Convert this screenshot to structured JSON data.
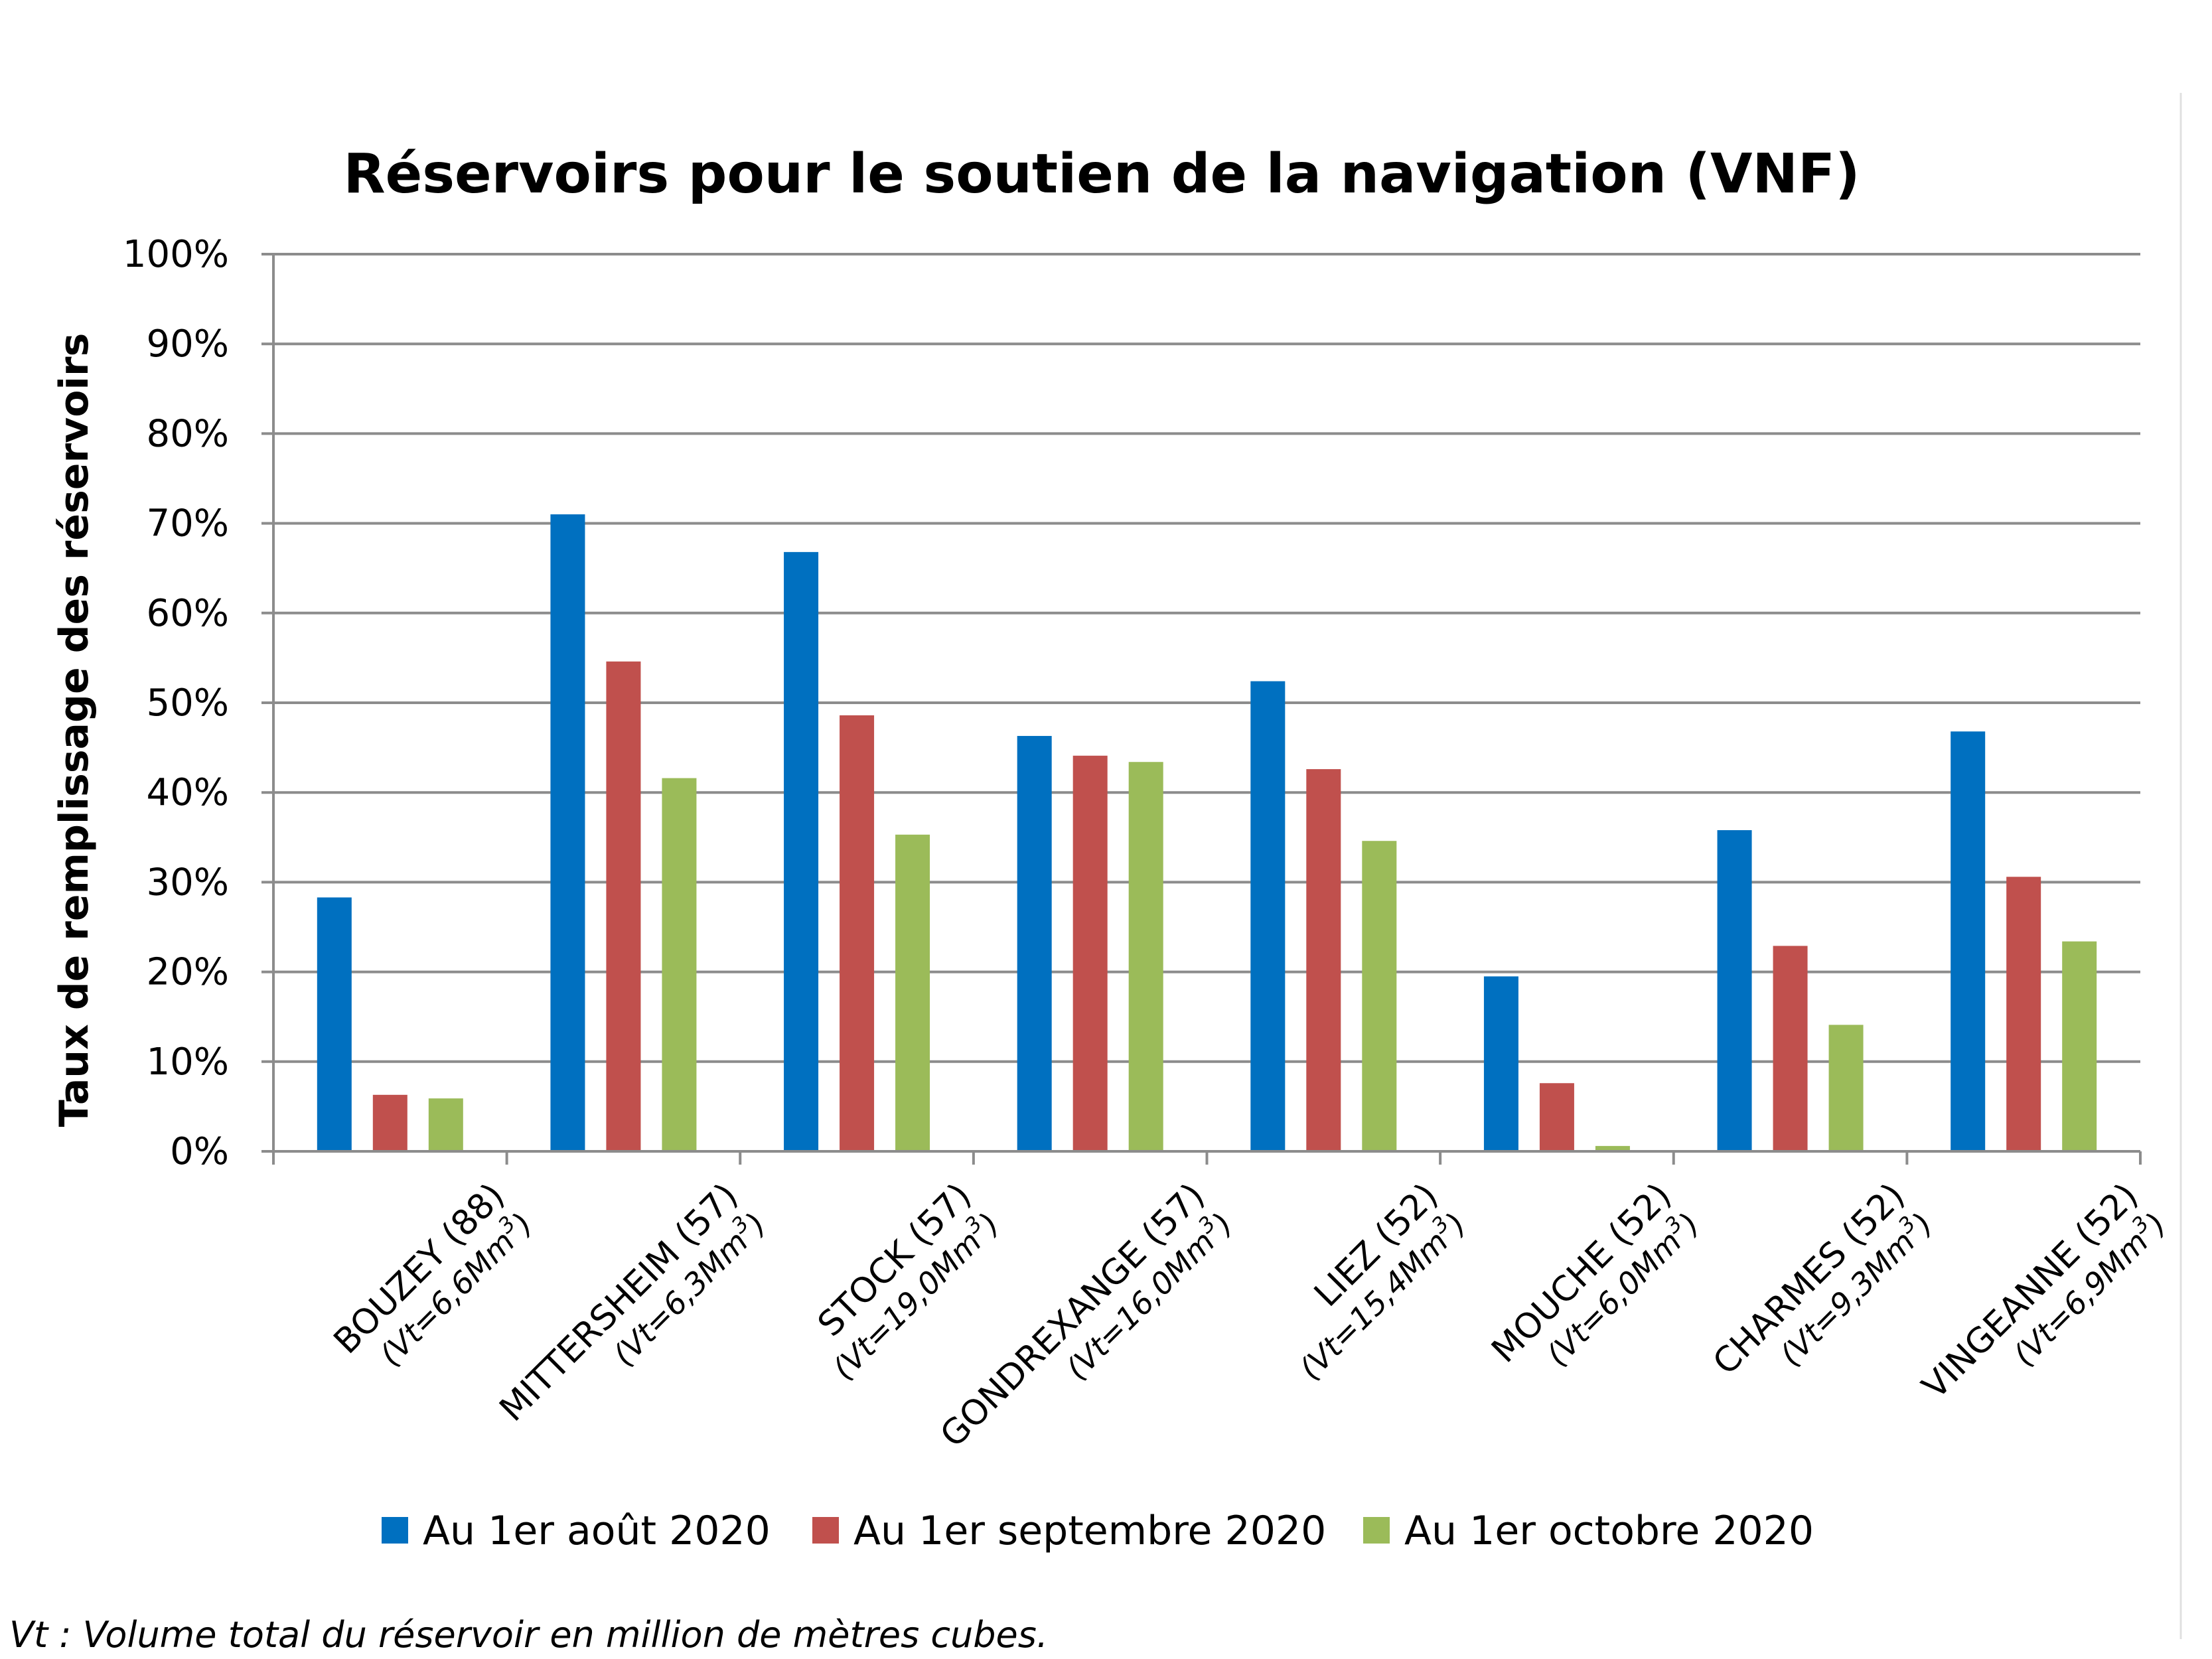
{
  "chart_data": {
    "type": "bar",
    "title": "Réservoirs pour le soutien de la navigation (VNF)",
    "ylabel": "Taux de remplissage des réservoirs",
    "xlabel": "",
    "ylim": [
      0,
      100
    ],
    "yticks": [
      "0%",
      "10%",
      "20%",
      "30%",
      "40%",
      "50%",
      "60%",
      "70%",
      "80%",
      "90%",
      "100%"
    ],
    "grid": true,
    "legend_position": "bottom",
    "categories": [
      {
        "name": "BOUZEY (88)",
        "sub": "Vt=6,6Mm",
        "sup": "3"
      },
      {
        "name": "MITTERSHEIM (57)",
        "sub": "Vt=6,3Mm",
        "sup": "3"
      },
      {
        "name": "STOCK (57)",
        "sub": "Vt=19,0Mm",
        "sup": "3"
      },
      {
        "name": "GONDREXANGE (57)",
        "sub": "Vt=16,0Mm",
        "sup": "3"
      },
      {
        "name": "LIEZ (52)",
        "sub": "Vt=15,4Mm",
        "sup": "3"
      },
      {
        "name": "MOUCHE (52)",
        "sub": "Vt=6,0Mm",
        "sup": "3"
      },
      {
        "name": "CHARMES (52)",
        "sub": "Vt=9,3Mm",
        "sup": "3"
      },
      {
        "name": "VINGEANNE (52)",
        "sub": "Vt=6,9Mm",
        "sup": "3"
      }
    ],
    "series": [
      {
        "name": "Au 1er août 2020",
        "color": "#0070C0",
        "values": [
          28.3,
          71.0,
          66.8,
          46.3,
          52.4,
          19.5,
          35.8,
          46.8
        ]
      },
      {
        "name": "Au 1er septembre 2020",
        "color": "#C0504D",
        "values": [
          6.3,
          54.6,
          48.6,
          44.1,
          42.6,
          7.6,
          22.9,
          30.6
        ]
      },
      {
        "name": "Au 1er octobre 2020",
        "color": "#9BBB59",
        "values": [
          5.9,
          41.6,
          35.3,
          43.4,
          34.6,
          0.6,
          14.1,
          23.4
        ]
      }
    ]
  },
  "footnote": "Vt : Volume total du réservoir en million de mètres cubes."
}
